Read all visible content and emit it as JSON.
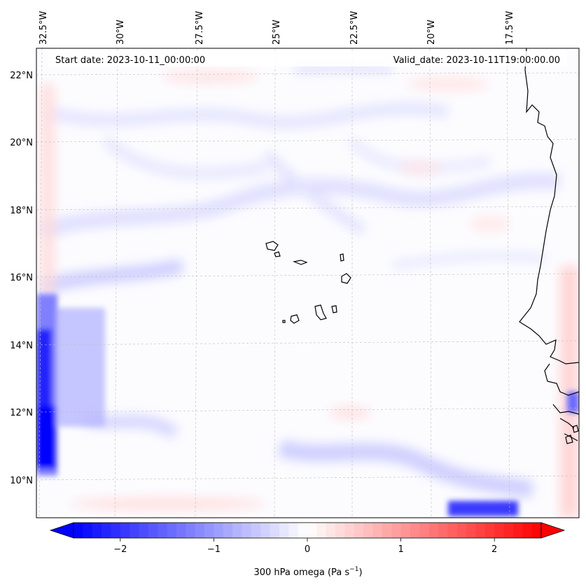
{
  "header": {
    "start_date": "Start date: 2023-10-11_00:00:00",
    "valid_date": "Valid_date: 2023-10-11T19:00:00.00"
  },
  "map": {
    "lon_labels": [
      "32.5°W",
      "30°W",
      "27.5°W",
      "25°W",
      "22.5°W",
      "20°W",
      "17.5°W"
    ],
    "lat_labels": [
      "22°N",
      "20°N",
      "18°N",
      "16°N",
      "14°N",
      "12°N",
      "10°N"
    ],
    "gridlines": true
  },
  "colorbar": {
    "ticks": [
      "−2",
      "−1",
      "0",
      "1",
      "2"
    ],
    "tick_values": [
      -2,
      -1,
      0,
      1,
      2
    ],
    "range": [
      -2.5,
      2.5
    ],
    "label_main": "300 hPa omega (Pa s",
    "label_exp": "−1",
    "label_tail": ")",
    "extend": "both",
    "color_low": "#0000ff",
    "color_mid": "#ffffff",
    "color_high": "#ff0000",
    "levels": 50
  }
}
